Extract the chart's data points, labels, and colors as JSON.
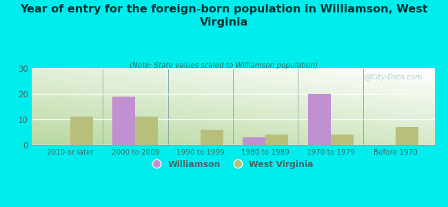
{
  "title": "Year of entry for the foreign-born population in Williamson, West\nVirginia",
  "subtitle": "(Note: State values scaled to Williamson population)",
  "categories": [
    "2010 or later",
    "2000 to 2009",
    "1990 to 1999",
    "1980 to 1989",
    "1970 to 1979",
    "Before 1970"
  ],
  "williamson": [
    0,
    19,
    0,
    3,
    20,
    0
  ],
  "west_virginia": [
    11,
    11,
    6,
    4,
    4,
    7
  ],
  "williamson_color": "#c090d0",
  "west_virginia_color": "#b8bf7a",
  "background_color": "#00eded",
  "plot_bg_top": "#f0f8e8",
  "plot_bg_bottom": "#c8e0b0",
  "ylim": [
    0,
    30
  ],
  "yticks": [
    0,
    10,
    20,
    30
  ],
  "bar_width": 0.35,
  "watermark": "@City-Data.com",
  "legend_williamson": "Williamson",
  "legend_wv": "West Virginia",
  "title_color": "#003333",
  "subtitle_color": "#336666",
  "tick_color": "#446666",
  "separator_color": "#88aaaa"
}
